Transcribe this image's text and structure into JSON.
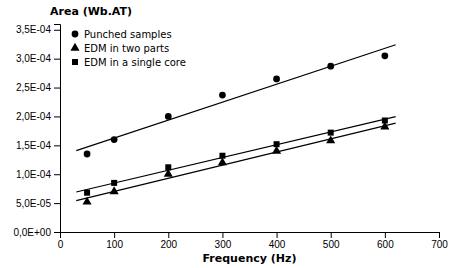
{
  "chart_data": {
    "type": "scatter",
    "title": "Area (Wb.AT)",
    "x_label": "Frequency (Hz)",
    "series": [
      {
        "type": "line",
        "color": "#000000",
        "line_style": "solid",
        "x": [
          30,
          620
        ],
        "values": [
          0.000140936544,
          0.000324154108
        ]
      },
      {
        "type": "line",
        "color": "#000000",
        "line_style": "solid",
        "x": [
          30,
          620
        ],
        "values": [
          5.4415863e-05,
          0.000188561472
        ]
      },
      {
        "type": "line",
        "color": "#000000",
        "line_style": "solid",
        "x": [
          30,
          620
        ],
        "values": [
          6.9270255e-05,
          0.000199772238
        ]
      },
      {
        "type": "scatter",
        "name": "Punched samples",
        "color": "#000000",
        "marker": "circle",
        "x": [
          50,
          100,
          200,
          300,
          400,
          500,
          600
        ],
        "values": [
          0.000135,
          0.00016,
          0.0002,
          0.000237,
          0.000265,
          0.000287,
          0.000305
        ]
      },
      {
        "type": "scatter",
        "name": "EDM in two parts",
        "color": "#000000",
        "marker": "triangle",
        "x": [
          50,
          100,
          200,
          300,
          400,
          500,
          600
        ],
        "values": [
          5.2e-05,
          7e-05,
          0.0001,
          0.00012,
          0.00014,
          0.000158,
          0.000182
        ]
      },
      {
        "type": "scatter",
        "name": "EDM in a single core",
        "color": "#000000",
        "marker": "square",
        "x": [
          50,
          100,
          200,
          300,
          400,
          500,
          600
        ],
        "values": [
          6.8e-05,
          8.5e-05,
          0.000112,
          0.000132,
          0.000152,
          0.000172,
          0.000193
        ]
      }
    ],
    "xlim": [
      0,
      700
    ],
    "ylim": [
      0.0,
      0.00036
    ],
    "xticks": [
      0,
      100,
      200,
      300,
      400,
      500,
      600,
      700
    ],
    "yticks": [
      {
        "value": 0.0,
        "label": "0,0E+00"
      },
      {
        "value": 5e-05,
        "label": "5,0E-05"
      },
      {
        "value": 0.0001,
        "label": "1,0E-04"
      },
      {
        "value": 0.00015,
        "label": "1,5E-04"
      },
      {
        "value": 0.0002,
        "label": "2,0E-04"
      },
      {
        "value": 0.00025,
        "label": "2,5E-04"
      },
      {
        "value": 0.0003,
        "label": "3,0E-04"
      },
      {
        "value": 0.00035,
        "label": "3,5E-04"
      }
    ],
    "grid": false,
    "legend": "upper left"
  }
}
